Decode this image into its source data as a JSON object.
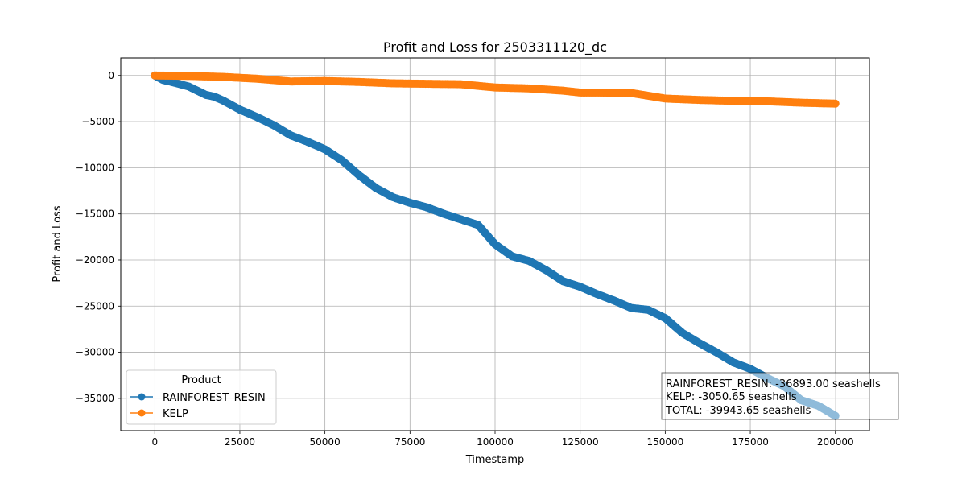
{
  "chart_data": {
    "type": "line",
    "title": "Profit and Loss for 2503311120_dc",
    "xlabel": "Timestamp",
    "ylabel": "Profit and Loss",
    "xlim": [
      -10000,
      210000
    ],
    "ylim": [
      -38500,
      1900
    ],
    "xticks": [
      0,
      25000,
      50000,
      75000,
      100000,
      125000,
      150000,
      175000,
      200000
    ],
    "yticks": [
      0,
      -5000,
      -10000,
      -15000,
      -20000,
      -25000,
      -30000,
      -35000
    ],
    "xtick_labels": [
      "0",
      "25000",
      "50000",
      "75000",
      "100000",
      "125000",
      "150000",
      "175000",
      "200000"
    ],
    "ytick_labels": [
      "0",
      "−5000",
      "−10000",
      "−15000",
      "−20000",
      "−25000",
      "−30000",
      "−35000"
    ],
    "grid": true,
    "legend": {
      "title": "Product",
      "placement": "lower-left"
    },
    "series": [
      {
        "name": "RAINFOREST_RESIN",
        "color": "#1f77b4",
        "x": [
          0,
          2500,
          5000,
          10000,
          15000,
          17500,
          20000,
          22500,
          25000,
          30000,
          35000,
          40000,
          45000,
          50000,
          55000,
          60000,
          65000,
          70000,
          75000,
          80000,
          85000,
          90000,
          95000,
          100000,
          105000,
          110000,
          115000,
          120000,
          125000,
          130000,
          135000,
          140000,
          145000,
          150000,
          155000,
          160000,
          165000,
          170000,
          175000,
          180000,
          185000,
          190000,
          195000,
          200000
        ],
        "y": [
          0,
          -500,
          -700,
          -1200,
          -2100,
          -2300,
          -2700,
          -3200,
          -3700,
          -4500,
          -5400,
          -6500,
          -7200,
          -8000,
          -9200,
          -10800,
          -12200,
          -13200,
          -13800,
          -14300,
          -15000,
          -15600,
          -16200,
          -18300,
          -19600,
          -20100,
          -21100,
          -22300,
          -22900,
          -23700,
          -24400,
          -25200,
          -25400,
          -26300,
          -27900,
          -29000,
          -30000,
          -31100,
          -31800,
          -32800,
          -33700,
          -35200,
          -35800,
          -36893
        ]
      },
      {
        "name": "KELP",
        "color": "#ff7f0e",
        "x": [
          0,
          10000,
          20000,
          30000,
          40000,
          50000,
          60000,
          70000,
          80000,
          90000,
          100000,
          110000,
          120000,
          125000,
          130000,
          140000,
          150000,
          160000,
          170000,
          180000,
          190000,
          200000
        ],
        "y": [
          0,
          -50,
          -150,
          -350,
          -650,
          -600,
          -700,
          -850,
          -900,
          -950,
          -1300,
          -1400,
          -1650,
          -1850,
          -1850,
          -1900,
          -2500,
          -2650,
          -2750,
          -2800,
          -2950,
          -3050.65
        ]
      }
    ],
    "annotation_lines": [
      "RAINFOREST_RESIN: -36893.00 seashells",
      "KELP: -3050.65 seashells",
      "TOTAL: -39943.65 seashells"
    ]
  }
}
